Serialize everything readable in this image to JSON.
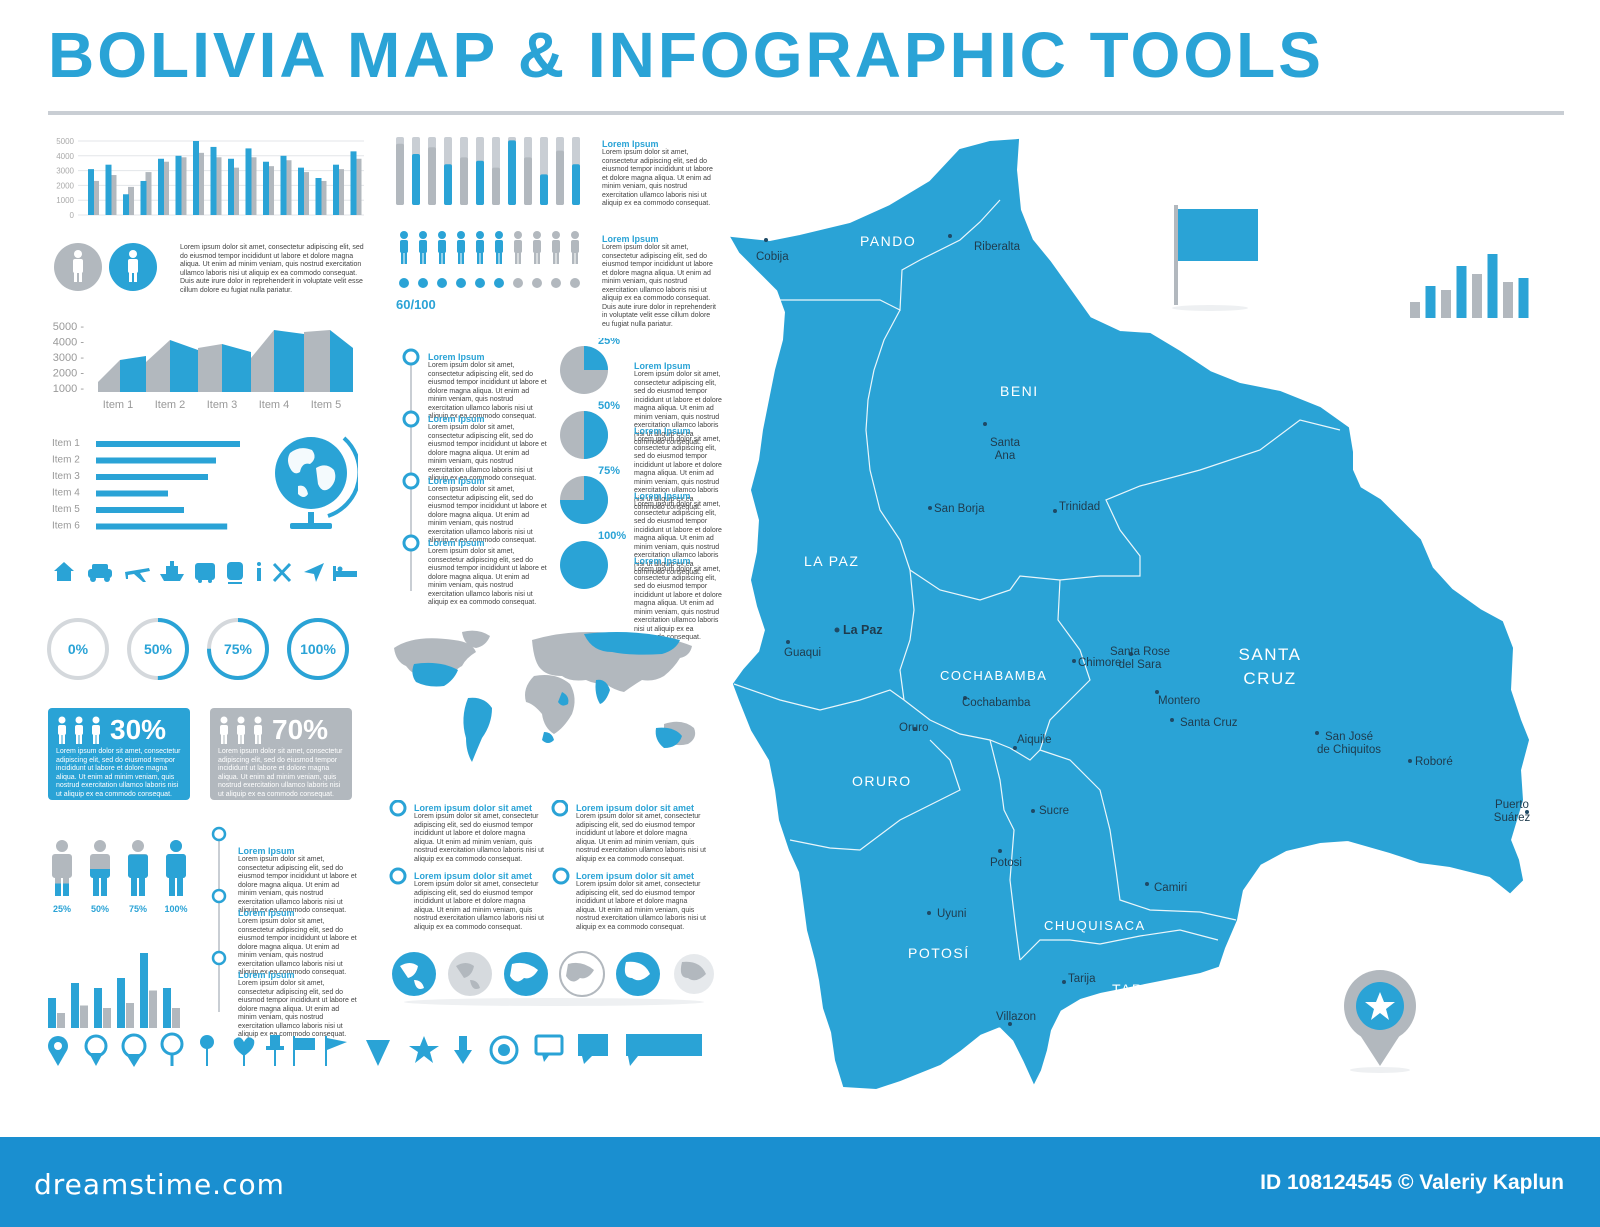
{
  "title": "BOLIVIA MAP & INFOGRAPHIC TOOLS",
  "colors": {
    "accent": "#2aa3d6",
    "gray": "#b2b8be",
    "footer": "#1a8fd0"
  },
  "bar_chart_1": {
    "y_ticks": [
      "5000",
      "4000",
      "3000",
      "2000",
      "1000",
      "0"
    ],
    "ylim": [
      0,
      5000
    ],
    "series": [
      {
        "name": "blue",
        "values": [
          3100,
          3400,
          1400,
          2300,
          3800,
          4000,
          5000,
          4600,
          3800,
          4500,
          3600,
          4000,
          3200,
          2500,
          3400,
          4300
        ]
      },
      {
        "name": "gray",
        "values": [
          2300,
          2700,
          1900,
          2900,
          3600,
          3900,
          4200,
          3900,
          3200,
          3900,
          3300,
          3700,
          2900,
          2300,
          3100,
          3800
        ]
      }
    ]
  },
  "bar_chart_2": {
    "values": [
      90,
      75,
      85,
      60,
      70,
      65,
      55,
      95,
      70,
      45,
      80,
      60
    ]
  },
  "lorem_title": "Lorem Ipsum",
  "lorem_short": "Lorem ipsum dolor sit amet, consectetur adipiscing elit, sed do eiusmod tempor incididunt ut labore et dolore magna aliqua. Ut enim ad minim veniam, quis nostrud exercitation ullamco laboris nisi ut aliquip ex ea commodo consequat.",
  "lorem_long": "Lorem ipsum dolor sit amet, consectetur adipiscing elit, sed do eiusmod tempor incididunt ut labore et dolore magna aliqua. Ut enim ad minim veniam, quis nostrud exercitation ullamco laboris nisi ut aliquip ex ea commodo consequat. Duis aute irure dolor in reprehenderit in voluptate velit esse cillum dolore eu fugiat nulla pariatur.",
  "people_score": {
    "label": "60/100",
    "value": 60
  },
  "area_chart": {
    "y_ticks": [
      "5000",
      "4000",
      "3000",
      "2000",
      "1000"
    ],
    "categories": [
      "Item 1",
      "Item 2",
      "Item 3",
      "Item 4",
      "Item 5"
    ]
  },
  "hbar": {
    "items": [
      "Item 1",
      "Item 2",
      "Item 3",
      "Item 4",
      "Item 5",
      "Item 6"
    ],
    "values": [
      90,
      75,
      70,
      45,
      55,
      82
    ]
  },
  "timeline_items": [
    "Lorem Ipsum",
    "Lorem Ipsum",
    "Lorem Ipsum",
    "Lorem Ipsum"
  ],
  "pies": [
    {
      "label": "25%",
      "value": 25,
      "title": "Lorem Ipsum"
    },
    {
      "label": "50%",
      "value": 50,
      "title": "Lorem Ipsum"
    },
    {
      "label": "75%",
      "value": 75,
      "title": "Lorem Ipsum"
    },
    {
      "label": "100%",
      "value": 100,
      "title": "Lorem Ipsum"
    }
  ],
  "rings": [
    {
      "label": "0%",
      "value": 0
    },
    {
      "label": "50%",
      "value": 50
    },
    {
      "label": "75%",
      "value": 75
    },
    {
      "label": "100%",
      "value": 100
    }
  ],
  "pct_boxes": [
    {
      "label": "30%"
    },
    {
      "label": "70%"
    }
  ],
  "persons_fill": [
    {
      "label": "25%",
      "value": 25
    },
    {
      "label": "50%",
      "value": 50
    },
    {
      "label": "75%",
      "value": 75
    },
    {
      "label": "100%",
      "value": 100
    }
  ],
  "bottom_bars": {
    "values": [
      30,
      45,
      40,
      50,
      75,
      40
    ]
  },
  "small_bars": {
    "values": [
      20,
      40,
      35,
      65,
      55,
      80,
      45,
      50
    ]
  },
  "list_items": [
    "Lorem ipsum dolor sit amet",
    "Lorem ipsum dolor sit amet",
    "Lorem ipsum dolor sit amet",
    "Lorem ipsum dolor sit amet"
  ],
  "map": {
    "departments": [
      "PANDO",
      "BENI",
      "LA PAZ",
      "COCHABAMBA",
      "ORURO",
      "POTOSÍ",
      "CHUQUISACA",
      "TARIJA",
      "SANTA CRUZ"
    ],
    "cities": [
      "Cobija",
      "Riberalta",
      "Santa Ana",
      "San Borja",
      "Trinidad",
      "La Paz",
      "Guaqui",
      "Chimore",
      "Cochabamba",
      "Oruro",
      "Aiquile",
      "Sucre",
      "Potosi",
      "Uyuni",
      "Tarija",
      "Villazon",
      "Camiri",
      "Santa Rose del Sara",
      "Montero",
      "Santa Cruz",
      "San José de Chiquitos",
      "Roboré",
      "Puerto Suárez"
    ]
  },
  "footer": {
    "brand": "dreamstime.com",
    "credit": "ID 108124545 © Valeriy Kaplun"
  }
}
